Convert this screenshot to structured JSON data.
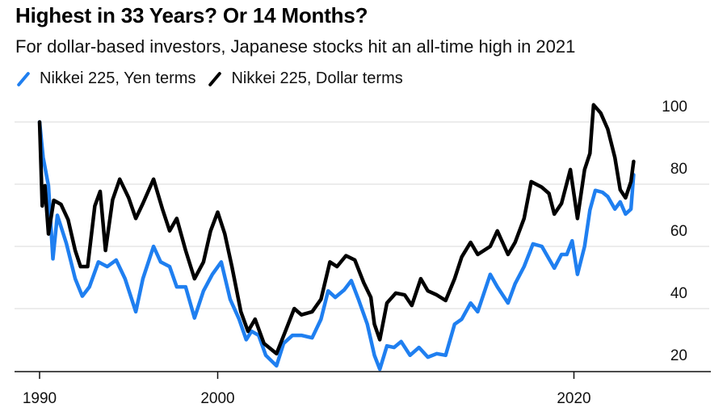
{
  "chart_data": {
    "type": "line",
    "title": "Highest in 33 Years? Or 14 Months?",
    "subtitle": "For dollar-based investors, Japanese stocks hit an all-time high in 2021",
    "xlabel": "",
    "ylabel": "",
    "xlim": [
      1989.2,
      2026.7
    ],
    "ylim": [
      20,
      105
    ],
    "x_ticks": [
      1990,
      2000,
      2020
    ],
    "x_tick_labels": [
      "1990",
      "2000",
      "2020"
    ],
    "y_ticks": [
      20,
      40,
      60,
      80,
      100
    ],
    "y_tick_labels": [
      "20",
      "40",
      "60",
      "80",
      "100"
    ],
    "grid": true,
    "legend_position": "top-left",
    "series": [
      {
        "name": "Nikkei 225, Yen terms",
        "color": "#1f7ff0",
        "points": [
          [
            1990.0,
            100
          ],
          [
            1990.2,
            88.6
          ],
          [
            1990.5,
            79.5
          ],
          [
            1990.75,
            56
          ],
          [
            1991.0,
            70
          ],
          [
            1991.5,
            61
          ],
          [
            1992.0,
            49.6
          ],
          [
            1992.4,
            44
          ],
          [
            1992.8,
            47
          ],
          [
            1993.3,
            55
          ],
          [
            1993.8,
            53.5
          ],
          [
            1994.3,
            55.6
          ],
          [
            1994.8,
            49.6
          ],
          [
            1995.4,
            39
          ],
          [
            1995.8,
            49.6
          ],
          [
            1996.4,
            60
          ],
          [
            1996.8,
            55
          ],
          [
            1997.3,
            53.5
          ],
          [
            1997.7,
            47
          ],
          [
            1998.2,
            47
          ],
          [
            1998.7,
            37
          ],
          [
            1999.2,
            45.7
          ],
          [
            1999.7,
            51
          ],
          [
            2000.2,
            55
          ],
          [
            2000.7,
            43
          ],
          [
            2001.2,
            36.6
          ],
          [
            2001.6,
            30
          ],
          [
            2001.9,
            32.7
          ],
          [
            2002.3,
            31.4
          ],
          [
            2002.7,
            25
          ],
          [
            2003.3,
            21.6
          ],
          [
            2003.7,
            28.8
          ],
          [
            2004.2,
            31.4
          ],
          [
            2004.7,
            31.4
          ],
          [
            2005.3,
            30.6
          ],
          [
            2005.8,
            36.6
          ],
          [
            2006.2,
            45.7
          ],
          [
            2006.6,
            43.6
          ],
          [
            2007.1,
            46
          ],
          [
            2007.5,
            49
          ],
          [
            2007.9,
            43
          ],
          [
            2008.4,
            35
          ],
          [
            2008.8,
            25
          ],
          [
            2009.1,
            20.5
          ],
          [
            2009.5,
            28
          ],
          [
            2009.9,
            27.5
          ],
          [
            2010.3,
            29.4
          ],
          [
            2010.8,
            25
          ],
          [
            2011.3,
            27.5
          ],
          [
            2011.8,
            24.4
          ],
          [
            2012.3,
            25.5
          ],
          [
            2012.8,
            25
          ],
          [
            2013.3,
            35
          ],
          [
            2013.7,
            36.6
          ],
          [
            2014.2,
            41.8
          ],
          [
            2014.6,
            39
          ],
          [
            2015.3,
            51
          ],
          [
            2015.7,
            47
          ],
          [
            2016.3,
            41.8
          ],
          [
            2016.7,
            48
          ],
          [
            2017.2,
            53.5
          ],
          [
            2017.7,
            60.8
          ],
          [
            2018.2,
            60
          ],
          [
            2018.6,
            56
          ],
          [
            2018.9,
            53
          ],
          [
            2019.3,
            57.4
          ],
          [
            2019.6,
            57.4
          ],
          [
            2019.9,
            61.8
          ],
          [
            2020.2,
            51
          ],
          [
            2020.6,
            60
          ],
          [
            2020.9,
            71.7
          ],
          [
            2021.2,
            78
          ],
          [
            2021.6,
            77.4
          ],
          [
            2021.9,
            76
          ],
          [
            2022.3,
            72
          ],
          [
            2022.6,
            74.3
          ],
          [
            2022.9,
            70.4
          ],
          [
            2023.2,
            72
          ],
          [
            2023.35,
            83
          ]
        ]
      },
      {
        "name": "Nikkei 225, Dollar terms",
        "color": "#000000",
        "points": [
          [
            1990.0,
            100
          ],
          [
            1990.15,
            73
          ],
          [
            1990.3,
            79.5
          ],
          [
            1990.5,
            64
          ],
          [
            1990.8,
            74.8
          ],
          [
            1991.2,
            73.5
          ],
          [
            1991.6,
            68.6
          ],
          [
            1992.0,
            58.7
          ],
          [
            1992.3,
            53.5
          ],
          [
            1992.7,
            53.5
          ],
          [
            1993.1,
            73
          ],
          [
            1993.4,
            77.7
          ],
          [
            1993.7,
            58.7
          ],
          [
            1994.1,
            75
          ],
          [
            1994.5,
            81.6
          ],
          [
            1995.0,
            75.6
          ],
          [
            1995.4,
            69
          ],
          [
            1995.8,
            73.8
          ],
          [
            1996.4,
            81.6
          ],
          [
            1996.9,
            72
          ],
          [
            1997.3,
            65
          ],
          [
            1997.7,
            69
          ],
          [
            1998.2,
            58.7
          ],
          [
            1998.7,
            49.6
          ],
          [
            1999.2,
            55
          ],
          [
            1999.6,
            65
          ],
          [
            2000.0,
            71
          ],
          [
            2000.4,
            64
          ],
          [
            2000.8,
            53.5
          ],
          [
            2001.3,
            39
          ],
          [
            2001.7,
            32.7
          ],
          [
            2002.1,
            36.6
          ],
          [
            2002.6,
            28.8
          ],
          [
            2003.3,
            25.5
          ],
          [
            2003.8,
            32.7
          ],
          [
            2004.3,
            40
          ],
          [
            2004.7,
            38
          ],
          [
            2005.3,
            39
          ],
          [
            2005.8,
            43
          ],
          [
            2006.3,
            55
          ],
          [
            2006.7,
            53.5
          ],
          [
            2007.2,
            57
          ],
          [
            2007.7,
            55.6
          ],
          [
            2008.2,
            48.3
          ],
          [
            2008.6,
            43.6
          ],
          [
            2008.8,
            35
          ],
          [
            2009.1,
            30
          ],
          [
            2009.5,
            41.8
          ],
          [
            2010.0,
            45
          ],
          [
            2010.5,
            44.4
          ],
          [
            2010.9,
            41
          ],
          [
            2011.4,
            49.6
          ],
          [
            2011.8,
            45.7
          ],
          [
            2012.3,
            44.4
          ],
          [
            2012.8,
            42.6
          ],
          [
            2013.3,
            49.6
          ],
          [
            2013.7,
            56.6
          ],
          [
            2014.2,
            61.3
          ],
          [
            2014.6,
            57.4
          ],
          [
            2015.3,
            60
          ],
          [
            2015.7,
            65
          ],
          [
            2016.3,
            57.4
          ],
          [
            2016.7,
            61.3
          ],
          [
            2017.2,
            69
          ],
          [
            2017.6,
            80.8
          ],
          [
            2018.2,
            79
          ],
          [
            2018.6,
            77
          ],
          [
            2018.9,
            70.4
          ],
          [
            2019.3,
            73.8
          ],
          [
            2019.8,
            84.7
          ],
          [
            2020.2,
            69
          ],
          [
            2020.6,
            84.7
          ],
          [
            2020.9,
            89.9
          ],
          [
            2021.1,
            105.5
          ],
          [
            2021.5,
            102.9
          ],
          [
            2021.9,
            97.7
          ],
          [
            2022.3,
            88.6
          ],
          [
            2022.6,
            78.2
          ],
          [
            2022.9,
            75.6
          ],
          [
            2023.2,
            80.8
          ],
          [
            2023.35,
            87.3
          ]
        ]
      }
    ]
  }
}
